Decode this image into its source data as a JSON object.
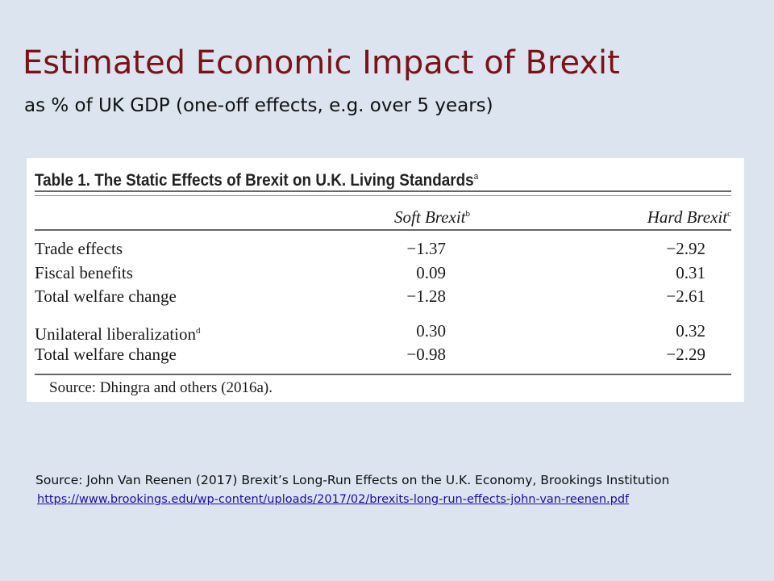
{
  "slide": {
    "title": "Estimated Economic Impact of Brexit",
    "subtitle": "as % of UK GDP (one-off effects, e.g. over 5 years)"
  },
  "table": {
    "caption": "Table 1.  The Static Effects of Brexit on U.K. Living Standards",
    "caption_note": "a",
    "columns": [
      {
        "label": "Soft Brexit",
        "note": "b"
      },
      {
        "label": "Hard Brexit",
        "note": "c"
      }
    ],
    "rows": [
      {
        "label": "Trade effects",
        "note": "",
        "soft": "−1.37",
        "hard": "−2.92"
      },
      {
        "label": "Fiscal benefits",
        "note": "",
        "soft": "0.09",
        "hard": "0.31"
      },
      {
        "label": "Total welfare change",
        "note": "",
        "soft": "−1.28",
        "hard": "−2.61"
      },
      {
        "label": "Unilateral liberalization",
        "note": "d",
        "soft": "0.30",
        "hard": "0.32"
      },
      {
        "label": "Total welfare change",
        "note": "",
        "soft": "−0.98",
        "hard": "−2.29"
      }
    ],
    "source": "Source: Dhingra and others (2016a)."
  },
  "footer": {
    "source": "Source: John Van Reenen  (2017) Brexit’s Long-Run Effects  on the U.K. Economy, Brookings Institution",
    "link": "https://www.brookings.edu/wp-content/uploads/2017/02/brexits-long-run-effects-john-van-reenen.pdf"
  },
  "colors": {
    "background": "#dbe4ef",
    "title": "#7b1218",
    "link": "#1a0dab"
  }
}
